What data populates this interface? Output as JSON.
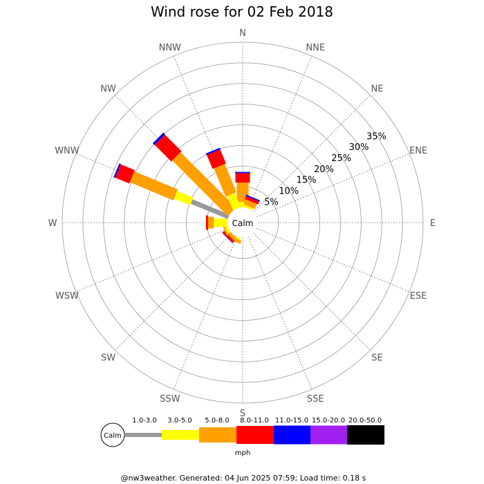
{
  "chart_data": {
    "type": "windrose",
    "title": "Wind rose for 02 Feb 2018",
    "directions": [
      "N",
      "NNE",
      "NE",
      "ENE",
      "E",
      "ESE",
      "SE",
      "SSE",
      "S",
      "SSW",
      "SW",
      "WSW",
      "W",
      "WNW",
      "NW",
      "NNW"
    ],
    "ring_percents": [
      5,
      10,
      15,
      20,
      25,
      30,
      35
    ],
    "ring_labels": [
      "5%",
      "10%",
      "15%",
      "20%",
      "25%",
      "30%",
      "35%"
    ],
    "calm_label": "Calm",
    "speed_unit": "mph",
    "speed_bins": [
      {
        "label": "1.0-3.0",
        "color": "#999999"
      },
      {
        "label": "3.0-5.0",
        "color": "#ffff00"
      },
      {
        "label": "5.0-8.0",
        "color": "#ffa000"
      },
      {
        "label": "8.0-11.0",
        "color": "#ff0000"
      },
      {
        "label": "11.0-15.0",
        "color": "#0000ff"
      },
      {
        "label": "15.0-20.0",
        "color": "#a020f0"
      },
      {
        "label": "20.0-50.0",
        "color": "#000000"
      }
    ],
    "series": [
      {
        "direction": "N",
        "cumulative_percents": [
          0.0,
          1.3,
          6.0,
          8.3,
          8.6,
          8.6,
          8.6
        ]
      },
      {
        "direction": "NNE",
        "cumulative_percents": [
          0.0,
          0.5,
          1.8,
          2.6,
          2.9,
          2.9,
          2.9
        ]
      },
      {
        "direction": "NE",
        "cumulative_percents": [
          0.0,
          0.0,
          0.0,
          0.0,
          0.0,
          0.0,
          0.0
        ]
      },
      {
        "direction": "ENE",
        "cumulative_percents": [
          0.0,
          0.0,
          0.0,
          0.0,
          0.0,
          0.0,
          0.0
        ]
      },
      {
        "direction": "E",
        "cumulative_percents": [
          0.0,
          0.0,
          0.0,
          0.0,
          0.0,
          0.0,
          0.0
        ]
      },
      {
        "direction": "ESE",
        "cumulative_percents": [
          0.0,
          0.0,
          0.0,
          0.0,
          0.0,
          0.0,
          0.0
        ]
      },
      {
        "direction": "SE",
        "cumulative_percents": [
          0.0,
          0.0,
          0.0,
          0.0,
          0.0,
          0.0,
          0.0
        ]
      },
      {
        "direction": "SSE",
        "cumulative_percents": [
          0.0,
          0.0,
          0.0,
          0.0,
          0.0,
          0.0,
          0.0
        ]
      },
      {
        "direction": "S",
        "cumulative_percents": [
          0.0,
          0.0,
          0.0,
          0.0,
          0.0,
          0.0,
          0.0
        ]
      },
      {
        "direction": "SSW",
        "cumulative_percents": [
          0.0,
          0.5,
          1.3,
          1.3,
          1.3,
          1.3,
          1.3
        ]
      },
      {
        "direction": "SW",
        "cumulative_percents": [
          0.0,
          0.0,
          0.9,
          1.5,
          1.6,
          1.6,
          1.6
        ]
      },
      {
        "direction": "WSW",
        "cumulative_percents": [
          0.0,
          0.7,
          1.1,
          1.1,
          1.1,
          1.1,
          1.1
        ]
      },
      {
        "direction": "W",
        "cumulative_percents": [
          0.0,
          3.3,
          4.7,
          5.2,
          5.2,
          5.2,
          5.2
        ]
      },
      {
        "direction": "WNW",
        "cumulative_percents": [
          9.7,
          13.9,
          25.3,
          29.0,
          29.4,
          29.4,
          29.4
        ]
      },
      {
        "direction": "NW",
        "cumulative_percents": [
          0.0,
          0.0,
          19.0,
          24.7,
          25.3,
          25.3,
          25.3
        ]
      },
      {
        "direction": "NNW",
        "cumulative_percents": [
          0.0,
          3.7,
          11.1,
          14.8,
          15.2,
          15.2,
          15.2
        ]
      }
    ]
  },
  "footer_text": "@nw3weather. Generated: 04 Jun 2025 07:59; Load time: 0.18 s"
}
